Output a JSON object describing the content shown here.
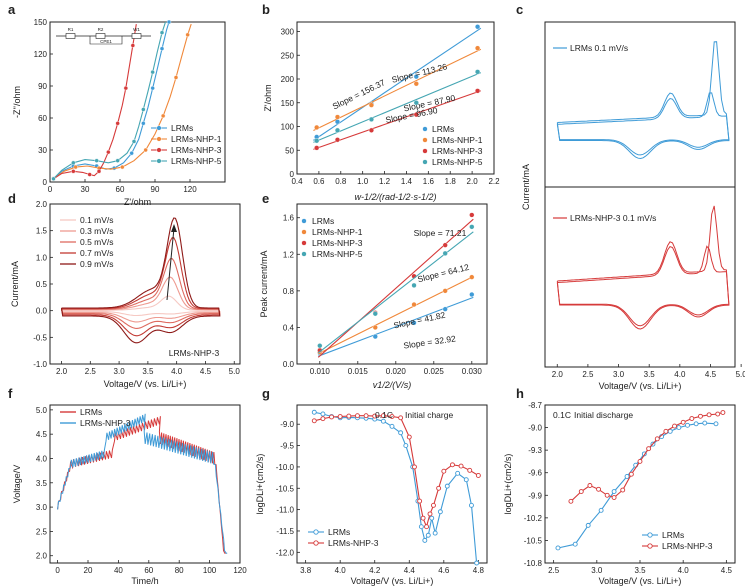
{
  "figure": "Electrochemical characterization of LRMs and LRMs-NHP samples",
  "colors": {
    "lrms": "#3f9bd7",
    "nhp1": "#f0883a",
    "nhp3": "#d63a3a",
    "nhp5": "#45a6b3",
    "axis": "#222222"
  },
  "chart_data": [
    {
      "id": "a",
      "label": "a",
      "type": "line",
      "xlabel": "Z'/ohm",
      "ylabel": "-Z''/ohm",
      "xlim": [
        0,
        150
      ],
      "ylim": [
        0,
        150
      ],
      "xticks": [
        0,
        30,
        60,
        90,
        120
      ],
      "yticks": [
        0,
        30,
        60,
        90,
        120,
        150
      ],
      "legend": [
        "LRMs",
        "LRMs-NHP-1",
        "LRMs-NHP-3",
        "LRMs-NHP-5"
      ],
      "inset": {
        "labels": [
          "R1",
          "R2",
          "W1",
          "CPE1"
        ]
      },
      "series": [
        {
          "name": "LRMs",
          "color": "#3f9bd7",
          "points": [
            [
              3,
              3
            ],
            [
              10,
              10
            ],
            [
              20,
              15
            ],
            [
              30,
              17
            ],
            [
              40,
              15
            ],
            [
              48,
              12
            ],
            [
              55,
              13
            ],
            [
              63,
              18
            ],
            [
              70,
              27
            ],
            [
              76,
              40
            ],
            [
              80,
              55
            ],
            [
              84,
              70
            ],
            [
              88,
              88
            ],
            [
              92,
              106
            ],
            [
              96,
              125
            ],
            [
              100,
              143
            ],
            [
              102,
              150
            ]
          ]
        },
        {
          "name": "LRMs-NHP-1",
          "color": "#f0883a",
          "points": [
            [
              3,
              3
            ],
            [
              12,
              10
            ],
            [
              22,
              14
            ],
            [
              32,
              15
            ],
            [
              42,
              13
            ],
            [
              52,
              12
            ],
            [
              62,
              14
            ],
            [
              72,
              20
            ],
            [
              82,
              30
            ],
            [
              90,
              45
            ],
            [
              97,
              62
            ],
            [
              103,
              80
            ],
            [
              108,
              98
            ],
            [
              113,
              118
            ],
            [
              118,
              138
            ],
            [
              121,
              148
            ]
          ]
        },
        {
          "name": "LRMs-NHP-3",
          "color": "#d63a3a",
          "points": [
            [
              3,
              3
            ],
            [
              10,
              8
            ],
            [
              20,
              10
            ],
            [
              28,
              9
            ],
            [
              34,
              7
            ],
            [
              38,
              6
            ],
            [
              42,
              10
            ],
            [
              46,
              18
            ],
            [
              50,
              28
            ],
            [
              54,
              40
            ],
            [
              58,
              55
            ],
            [
              62,
              72
            ],
            [
              65,
              88
            ],
            [
              68,
              108
            ],
            [
              71,
              128
            ],
            [
              74,
              148
            ]
          ]
        },
        {
          "name": "LRMs-NHP-5",
          "color": "#45a6b3",
          "points": [
            [
              3,
              3
            ],
            [
              10,
              11
            ],
            [
              20,
              18
            ],
            [
              30,
              21
            ],
            [
              40,
              20
            ],
            [
              50,
              18
            ],
            [
              58,
              20
            ],
            [
              66,
              27
            ],
            [
              72,
              38
            ],
            [
              76,
              52
            ],
            [
              80,
              68
            ],
            [
              84,
              85
            ],
            [
              88,
              103
            ],
            [
              92,
              122
            ],
            [
              96,
              140
            ],
            [
              99,
              150
            ]
          ]
        }
      ]
    },
    {
      "id": "b",
      "label": "b",
      "type": "scatter",
      "xlabel": "w-1/2/(rad-1/2·s-1/2)",
      "ylabel": "Z'/ohm",
      "xlim": [
        0.4,
        2.2
      ],
      "ylim": [
        0,
        320
      ],
      "xticks": [
        "0.4",
        "0.6",
        "0.8",
        "1.0",
        "1.2",
        "1.4",
        "1.6",
        "1.8",
        "2.0",
        "2.2"
      ],
      "yticks": [
        0,
        50,
        100,
        150,
        200,
        250,
        300
      ],
      "x": [
        0.58,
        0.77,
        1.08,
        1.49,
        2.05
      ],
      "series": [
        {
          "name": "LRMs",
          "color": "#3f9bd7",
          "values": [
            78,
            110,
            148,
            205,
            310
          ],
          "slope": "Slope = 156.37"
        },
        {
          "name": "LRMs-NHP-1",
          "color": "#f0883a",
          "values": [
            98,
            120,
            145,
            190,
            265
          ],
          "slope": "Slope = 113.26"
        },
        {
          "name": "LRMs-NHP-3",
          "color": "#d63a3a",
          "values": [
            55,
            72,
            92,
            125,
            175
          ],
          "slope": "Slope = 87.90"
        },
        {
          "name": "LRMs-NHP-5",
          "color": "#45a6b3",
          "values": [
            70,
            92,
            115,
            150,
            215
          ],
          "slope": "Slope = 96.90"
        }
      ]
    },
    {
      "id": "c1",
      "label": "c",
      "type": "line",
      "legend": "LRMs  0.1 mV/s",
      "ylabel": "Current/mA",
      "series": [
        {
          "name": "LRMs",
          "color": "#3f9bd7"
        }
      ]
    },
    {
      "id": "c2",
      "label": "",
      "type": "line",
      "legend": "LRMs-NHP-3  0.1 mV/s",
      "xlabel": "Voltage/V (vs. Li/Li+)",
      "xlim": [
        1.8,
        4.9
      ],
      "xticks": [
        "2.0",
        "2.5",
        "3.0",
        "3.5",
        "4.0",
        "4.5",
        "5.0"
      ],
      "series": [
        {
          "name": "LRMs-NHP-3",
          "color": "#d63a3a"
        }
      ]
    },
    {
      "id": "d",
      "label": "d",
      "type": "line",
      "xlabel": "Voltage/V (vs. Li/Li+)",
      "ylabel": "Current/mA",
      "xlim": [
        1.8,
        5.1
      ],
      "ylim": [
        -1.0,
        2.0
      ],
      "xticks": [
        "2.0",
        "2.5",
        "3.0",
        "3.5",
        "4.0",
        "4.5",
        "5.0"
      ],
      "yticks": [
        "-1.0",
        "-0.5",
        "0.0",
        "0.5",
        "1.0",
        "1.5",
        "2.0"
      ],
      "tag": "LRMs-NHP-3",
      "series": [
        {
          "name": "0.1 mV/s",
          "scale": 0.15,
          "color": "#f6c9c3"
        },
        {
          "name": "0.3 mV/s",
          "scale": 0.35,
          "color": "#ee9b91"
        },
        {
          "name": "0.5 mV/s",
          "scale": 0.55,
          "color": "#de6b60"
        },
        {
          "name": "0.7 mV/s",
          "scale": 0.78,
          "color": "#c23a33"
        },
        {
          "name": "0.9 mV/s",
          "scale": 1.0,
          "color": "#8e1a18"
        }
      ]
    },
    {
      "id": "e",
      "label": "e",
      "type": "scatter",
      "xlabel": "v1/2/(V/s)",
      "ylabel": "Peak current/mA",
      "xlim": [
        0.007,
        0.032
      ],
      "ylim": [
        0,
        1.75
      ],
      "xticks": [
        "0.010",
        "0.015",
        "0.020",
        "0.025",
        "0.030"
      ],
      "yticks": [
        "0.0",
        "0.4",
        "0.8",
        "1.2",
        "1.6"
      ],
      "x": [
        0.01,
        0.0173,
        0.0224,
        0.0265,
        0.03
      ],
      "series": [
        {
          "name": "LRMs",
          "color": "#3f9bd7",
          "values": [
            0.12,
            0.3,
            0.45,
            0.6,
            0.76
          ],
          "slope": "Slope = 32.92"
        },
        {
          "name": "LRMs-NHP-1",
          "color": "#f0883a",
          "values": [
            0.13,
            0.4,
            0.65,
            0.8,
            0.95
          ],
          "slope": "Slope = 41.82"
        },
        {
          "name": "LRMs-NHP-3",
          "color": "#d63a3a",
          "values": [
            0.15,
            0.56,
            0.96,
            1.3,
            1.63
          ],
          "slope": "Slope = 71.21"
        },
        {
          "name": "LRMs-NHP-5",
          "color": "#45a6b3",
          "values": [
            0.2,
            0.55,
            0.86,
            1.21,
            1.5
          ],
          "slope": "Slope = 64.12"
        }
      ]
    },
    {
      "id": "f",
      "label": "f",
      "type": "line",
      "xlabel": "Time/h",
      "ylabel": "Voltage/V",
      "xlim": [
        -5,
        120
      ],
      "ylim": [
        1.85,
        5.1
      ],
      "xticks": [
        0,
        20,
        40,
        60,
        80,
        100,
        120
      ],
      "yticks": [
        "2.0",
        "2.5",
        "3.0",
        "3.5",
        "4.0",
        "4.5",
        "5.0"
      ],
      "legend": [
        "LRMs",
        "LRMs-NHP-3"
      ]
    },
    {
      "id": "g",
      "label": "g",
      "type": "line",
      "xlabel": "Voltage/V (vs. Li/Li+)",
      "ylabel": "logDLi+(cm2/s)",
      "xlim": [
        3.75,
        4.85
      ],
      "ylim": [
        -12.25,
        -8.55
      ],
      "xticks": [
        "3.8",
        "4.0",
        "4.2",
        "4.4",
        "4.6",
        "4.8"
      ],
      "yticks": [
        "-12.0",
        "-11.5",
        "-11.0",
        "-10.5",
        "-10.0",
        "-9.5",
        "-9.0"
      ],
      "annotations": [
        "0.1C",
        "Initial charge"
      ],
      "series": [
        {
          "name": "LRMs",
          "color": "#3f9bd7",
          "points": [
            [
              3.85,
              -8.72
            ],
            [
              3.9,
              -8.76
            ],
            [
              3.95,
              -8.82
            ],
            [
              4.0,
              -8.85
            ],
            [
              4.05,
              -8.84
            ],
            [
              4.1,
              -8.85
            ],
            [
              4.15,
              -8.86
            ],
            [
              4.2,
              -8.88
            ],
            [
              4.25,
              -8.93
            ],
            [
              4.3,
              -9.05
            ],
            [
              4.35,
              -9.2
            ],
            [
              4.38,
              -9.5
            ],
            [
              4.42,
              -10.0
            ],
            [
              4.45,
              -10.8
            ],
            [
              4.47,
              -11.4
            ],
            [
              4.49,
              -11.72
            ],
            [
              4.51,
              -11.6
            ],
            [
              4.53,
              -11.2
            ],
            [
              4.55,
              -11.55
            ],
            [
              4.58,
              -11.05
            ],
            [
              4.62,
              -10.45
            ],
            [
              4.68,
              -10.15
            ],
            [
              4.73,
              -10.3
            ],
            [
              4.76,
              -10.9
            ],
            [
              4.79,
              -12.25
            ]
          ]
        },
        {
          "name": "LRMs-NHP-3",
          "color": "#d63a3a",
          "points": [
            [
              3.85,
              -8.92
            ],
            [
              3.9,
              -8.87
            ],
            [
              3.95,
              -8.83
            ],
            [
              4.0,
              -8.82
            ],
            [
              4.05,
              -8.81
            ],
            [
              4.1,
              -8.8
            ],
            [
              4.15,
              -8.8
            ],
            [
              4.2,
              -8.81
            ],
            [
              4.25,
              -8.8
            ],
            [
              4.3,
              -8.82
            ],
            [
              4.35,
              -8.85
            ],
            [
              4.4,
              -9.3
            ],
            [
              4.43,
              -10.0
            ],
            [
              4.46,
              -10.8
            ],
            [
              4.48,
              -11.2
            ],
            [
              4.5,
              -11.4
            ],
            [
              4.52,
              -11.1
            ],
            [
              4.54,
              -10.9
            ],
            [
              4.57,
              -10.5
            ],
            [
              4.6,
              -10.1
            ],
            [
              4.65,
              -9.95
            ],
            [
              4.7,
              -9.98
            ],
            [
              4.75,
              -10.08
            ],
            [
              4.8,
              -10.2
            ]
          ]
        }
      ]
    },
    {
      "id": "h",
      "label": "h",
      "type": "line",
      "xlabel": "Voltage/V (vs. Li/Li+)",
      "ylabel": "logDLi+(cm2/s)",
      "xlim": [
        2.4,
        4.6
      ],
      "ylim": [
        -10.8,
        -8.7
      ],
      "xticks": [
        "2.5",
        "3.0",
        "3.5",
        "4.0",
        "4.5"
      ],
      "yticks": [
        "-10.8",
        "-10.5",
        "-10.2",
        "-9.9",
        "-9.6",
        "-9.3",
        "-9.0",
        "-8.7"
      ],
      "annotations": [
        "0.1C",
        "Initial discharge"
      ],
      "series": [
        {
          "name": "LRMs",
          "color": "#3f9bd7",
          "points": [
            [
              2.55,
              -10.6
            ],
            [
              2.75,
              -10.55
            ],
            [
              2.9,
              -10.3
            ],
            [
              3.05,
              -10.1
            ],
            [
              3.2,
              -9.85
            ],
            [
              3.35,
              -9.65
            ],
            [
              3.45,
              -9.5
            ],
            [
              3.55,
              -9.35
            ],
            [
              3.65,
              -9.22
            ],
            [
              3.75,
              -9.12
            ],
            [
              3.85,
              -9.05
            ],
            [
              3.95,
              -9.0
            ],
            [
              4.05,
              -8.97
            ],
            [
              4.15,
              -8.95
            ],
            [
              4.25,
              -8.94
            ],
            [
              4.38,
              -8.95
            ]
          ]
        },
        {
          "name": "LRMs-NHP-3",
          "color": "#d63a3a",
          "points": [
            [
              2.7,
              -9.98
            ],
            [
              2.82,
              -9.85
            ],
            [
              2.92,
              -9.77
            ],
            [
              3.02,
              -9.82
            ],
            [
              3.12,
              -9.9
            ],
            [
              3.2,
              -9.93
            ],
            [
              3.3,
              -9.83
            ],
            [
              3.4,
              -9.62
            ],
            [
              3.5,
              -9.45
            ],
            [
              3.6,
              -9.28
            ],
            [
              3.7,
              -9.15
            ],
            [
              3.8,
              -9.05
            ],
            [
              3.9,
              -8.98
            ],
            [
              4.0,
              -8.93
            ],
            [
              4.1,
              -8.88
            ],
            [
              4.2,
              -8.85
            ],
            [
              4.3,
              -8.83
            ],
            [
              4.4,
              -8.82
            ],
            [
              4.46,
              -8.8
            ]
          ]
        }
      ]
    }
  ]
}
